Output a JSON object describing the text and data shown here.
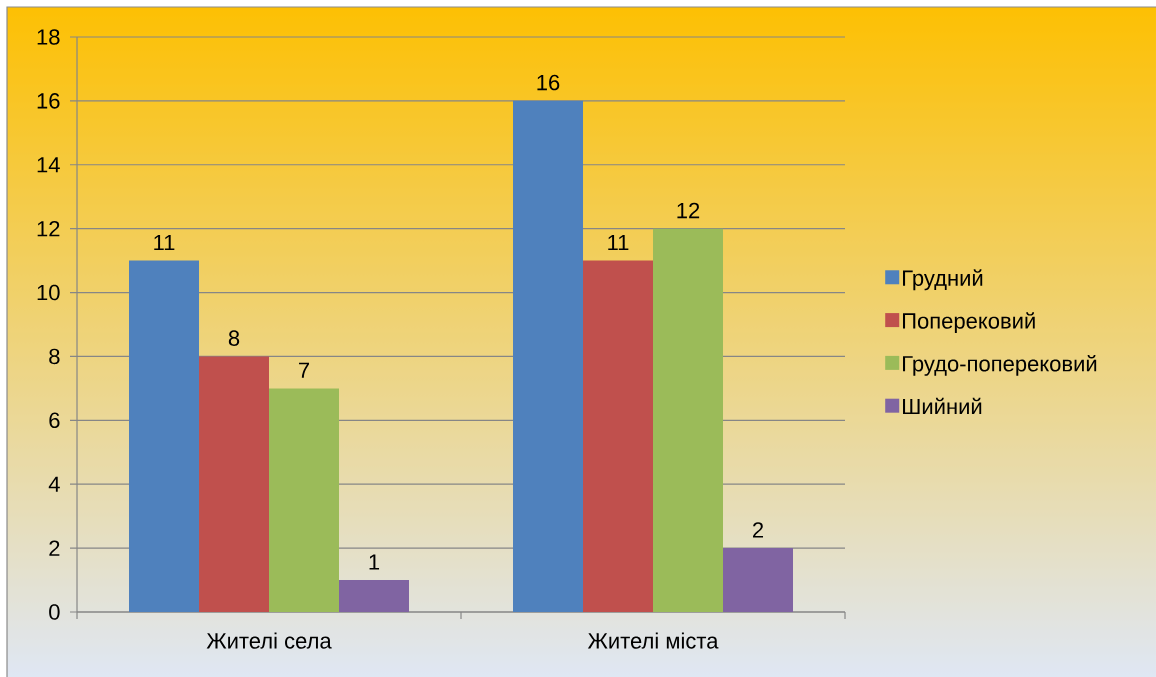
{
  "chart_data": {
    "type": "bar",
    "categories": [
      "Жителі села",
      "Жителі міста"
    ],
    "series": [
      {
        "name": "Грудний",
        "color": "#4f81bd",
        "values": [
          11,
          16
        ]
      },
      {
        "name": "Поперековий",
        "color": "#c0504d",
        "values": [
          8,
          11
        ]
      },
      {
        "name": "Грудо-поперековий",
        "color": "#9bbb59",
        "values": [
          7,
          12
        ]
      },
      {
        "name": "Шийний",
        "color": "#8064a2",
        "values": [
          1,
          2
        ]
      }
    ],
    "ylim": [
      0,
      18
    ],
    "yticks": [
      0,
      2,
      4,
      6,
      8,
      10,
      12,
      14,
      16,
      18
    ],
    "grid": "y",
    "data_labels": true,
    "legend": "right"
  }
}
